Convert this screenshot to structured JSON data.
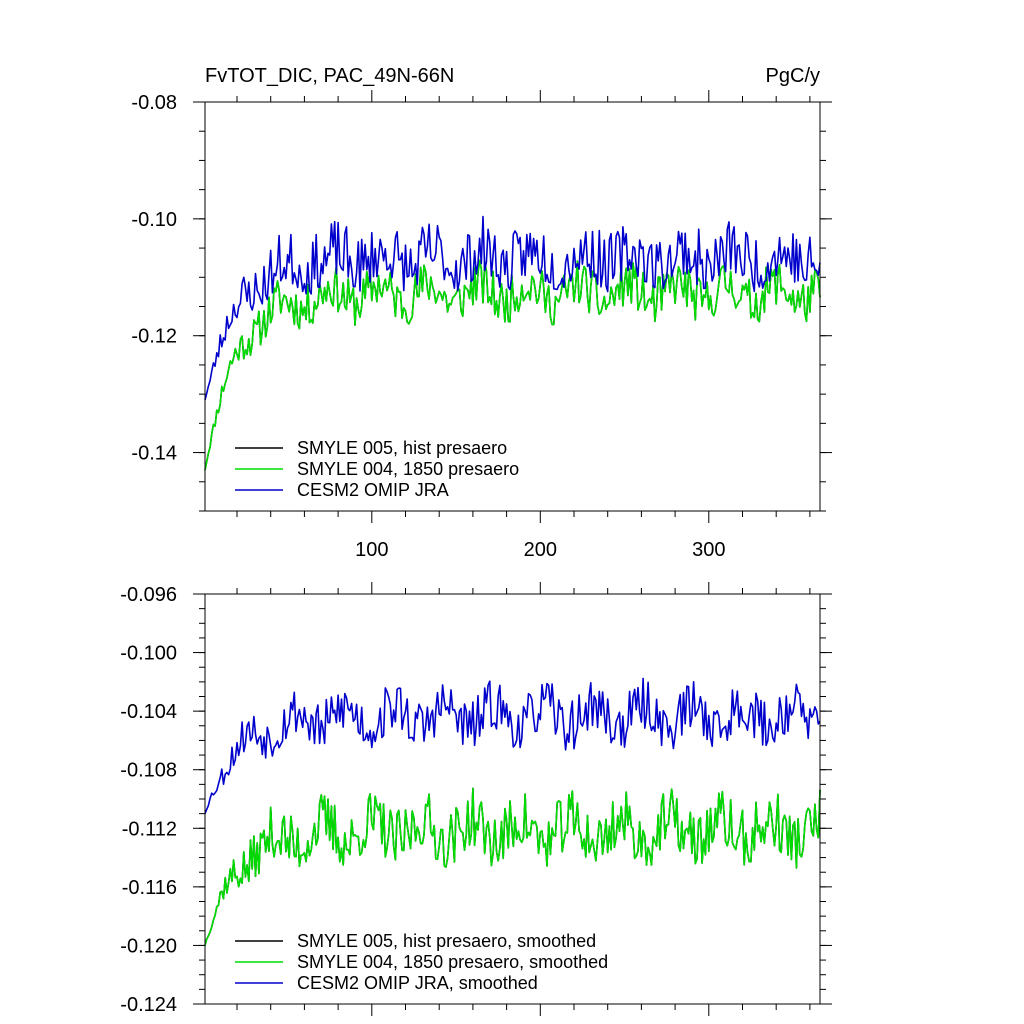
{
  "chart_data": [
    {
      "type": "line",
      "title": "FvTOT_DIC, PAC_49N-66N",
      "units": "PgC/y",
      "xlabel": "",
      "ylabel": "",
      "xlim": [
        1,
        366
      ],
      "ylim": [
        -0.15,
        -0.08
      ],
      "xticks": [
        100,
        200,
        300
      ],
      "xtick_labels": [
        "100",
        "200",
        "300"
      ],
      "yticks": [
        -0.08,
        -0.1,
        -0.12,
        -0.14
      ],
      "ytick_labels": [
        "-0.08",
        "-0.10",
        "-0.12",
        "-0.14"
      ],
      "legend_position": "bottom-left",
      "series": [
        {
          "name": "SMYLE 005, hist presaero",
          "color": "#000000",
          "base": -0.113,
          "spin_from": -0.143,
          "amp_up": 0.0045,
          "amp_dn": 0.0035,
          "seed": 11
        },
        {
          "name": "SMYLE 004, 1850 presaero",
          "color": "#00dd00",
          "base": -0.113,
          "spin_from": -0.143,
          "amp_up": 0.0045,
          "amp_dn": 0.0035,
          "seed": 11
        },
        {
          "name": "CESM2 OMIP JRA",
          "color": "#0000cc",
          "base": -0.108,
          "spin_from": -0.131,
          "amp_up": 0.007,
          "amp_dn": 0.003,
          "seed": 23
        }
      ],
      "legend": [
        "SMYLE 005, hist presaero",
        "SMYLE 004, 1850 presaero",
        "CESM2 OMIP JRA"
      ]
    },
    {
      "type": "line",
      "title": "",
      "xlabel": "",
      "ylabel": "",
      "xlim": [
        1,
        366
      ],
      "ylim": [
        -0.124,
        -0.096
      ],
      "xticks": [
        100,
        200,
        300
      ],
      "xtick_labels": [],
      "yticks": [
        -0.096,
        -0.1,
        -0.104,
        -0.108,
        -0.112,
        -0.116,
        -0.12,
        -0.124
      ],
      "ytick_labels": [
        "-0.096",
        "-0.100",
        "-0.104",
        "-0.108",
        "-0.112",
        "-0.116",
        "-0.120",
        "-0.124"
      ],
      "legend_position": "bottom-left",
      "series": [
        {
          "name": "SMYLE 005, hist presaero, smoothed",
          "color": "#000000",
          "base": -0.1125,
          "spin_from": -0.12,
          "amp_up": 0.0025,
          "amp_dn": 0.0015,
          "seed": 37
        },
        {
          "name": "SMYLE 004, 1850 presaero, smoothed",
          "color": "#00dd00",
          "base": -0.1125,
          "spin_from": -0.12,
          "amp_up": 0.0025,
          "amp_dn": 0.0015,
          "seed": 37
        },
        {
          "name": "CESM2 OMIP JRA, smoothed",
          "color": "#0000cc",
          "base": -0.1045,
          "spin_from": -0.111,
          "amp_up": 0.002,
          "amp_dn": 0.0015,
          "seed": 53
        }
      ],
      "legend": [
        "SMYLE 005, hist presaero, smoothed",
        "SMYLE 004, 1850 presaero, smoothed",
        "CESM2 OMIP JRA, smoothed"
      ]
    }
  ]
}
